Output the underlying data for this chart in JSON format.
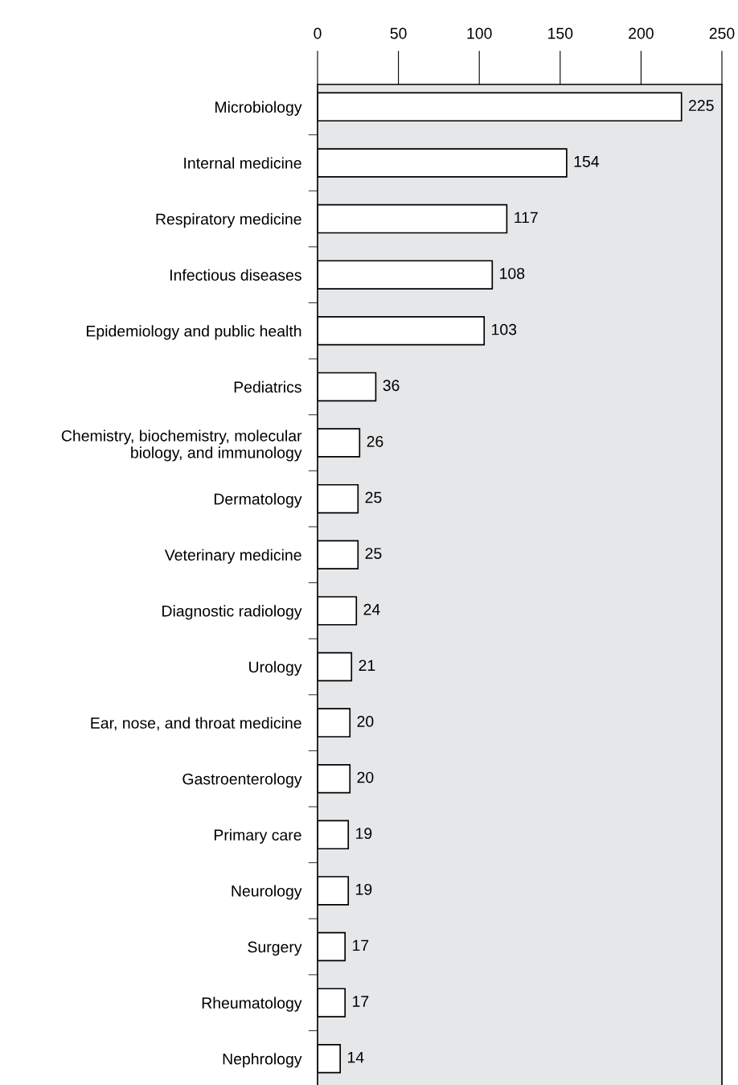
{
  "chart_data": {
    "type": "bar",
    "orientation": "horizontal",
    "categories": [
      "Microbiology",
      "Internal medicine",
      "Respiratory medicine",
      "Infectious diseases",
      "Epidemiology and public health",
      "Pediatrics",
      "Chemistry, biochemistry, molecular\nbiology, and immunology",
      "Dermatology",
      "Veterinary medicine",
      "Diagnostic radiology",
      "Urology",
      "Ear, nose, and throat medicine",
      "Gastroenterology",
      "Primary care",
      "Neurology",
      "Surgery",
      "Rheumatology",
      "Nephrology"
    ],
    "values": [
      225,
      154,
      117,
      108,
      103,
      36,
      26,
      25,
      25,
      24,
      21,
      20,
      20,
      19,
      19,
      17,
      17,
      14
    ],
    "color": "#ffffff",
    "xlim": [
      0,
      250
    ],
    "xticks": [
      0,
      50,
      100,
      150,
      200,
      250
    ],
    "data_labels": true,
    "grid": false,
    "legend": false
  }
}
